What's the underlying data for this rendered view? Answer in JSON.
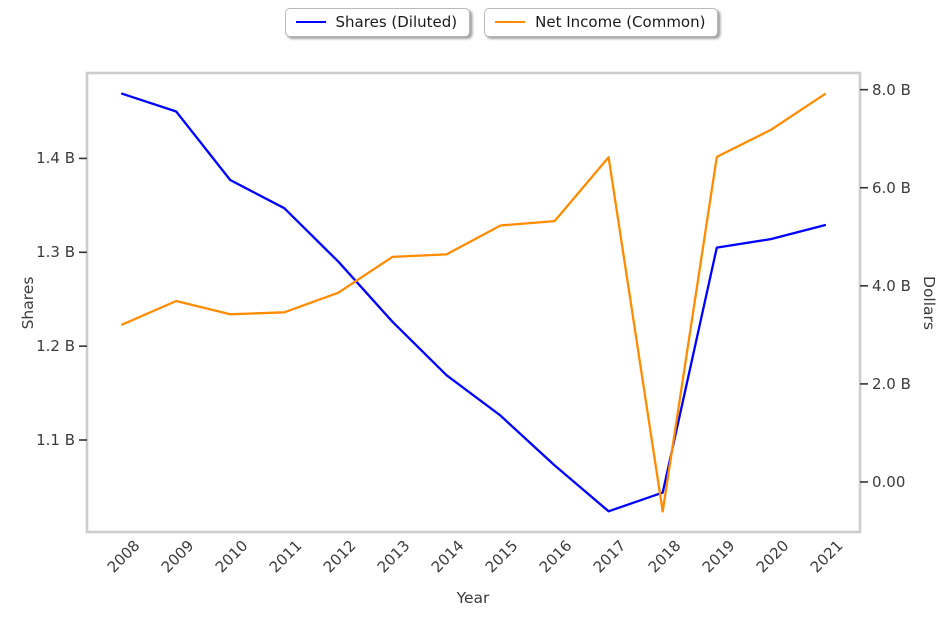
{
  "chart_data": {
    "type": "line",
    "title": "",
    "xlabel": "Year",
    "x": [
      2008,
      2009,
      2010,
      2011,
      2012,
      2013,
      2014,
      2015,
      2016,
      2017,
      2018,
      2019,
      2020,
      2021
    ],
    "series": [
      {
        "name": "Shares (Diluted)",
        "axis": "left",
        "color": "#0000ff",
        "values": [
          1.469,
          1.45,
          1.377,
          1.347,
          1.29,
          1.226,
          1.169,
          1.126,
          1.073,
          1.024,
          1.044,
          1.305,
          1.314,
          1.329
        ]
      },
      {
        "name": "Net Income (Common)",
        "axis": "right",
        "color": "#ff8c00",
        "values": [
          3.21,
          3.69,
          3.42,
          3.46,
          3.86,
          4.59,
          4.64,
          5.23,
          5.32,
          6.62,
          -0.6,
          6.63,
          7.18,
          7.91
        ]
      }
    ],
    "axes": {
      "x": {
        "label": "Year",
        "tick_labels": [
          "2008",
          "2009",
          "2010",
          "2011",
          "2012",
          "2013",
          "2014",
          "2015",
          "2016",
          "2017",
          "2018",
          "2019",
          "2020",
          "2021"
        ],
        "range": [
          2007.35,
          2021.65
        ],
        "tick_rotation_deg": 45
      },
      "left": {
        "label": "Shares",
        "tick_values": [
          1.1,
          1.2,
          1.3,
          1.4
        ],
        "tick_labels": [
          "1.1 B",
          "1.2 B",
          "1.3 B",
          "1.4 B"
        ],
        "range": [
          1.002,
          1.491
        ]
      },
      "right": {
        "label": "Dollars",
        "tick_values": [
          0,
          2,
          4,
          6,
          8
        ],
        "tick_labels": [
          "0.00",
          "2.0 B",
          "4.0 B",
          "6.0 B",
          "8.0 B"
        ],
        "range": [
          -1.02,
          8.34
        ]
      }
    },
    "legend": {
      "position": "top-center",
      "entries": [
        "Shares (Diluted)",
        "Net Income (Common)"
      ]
    },
    "grid": false,
    "styles": {
      "background": "#ffffff",
      "spine_color": "#cdcdcd",
      "tick_mark_color": "#333333",
      "text_color": "#3b3b3b",
      "blue_line": "#0000ff",
      "orange_line": "#ff8c00"
    }
  }
}
